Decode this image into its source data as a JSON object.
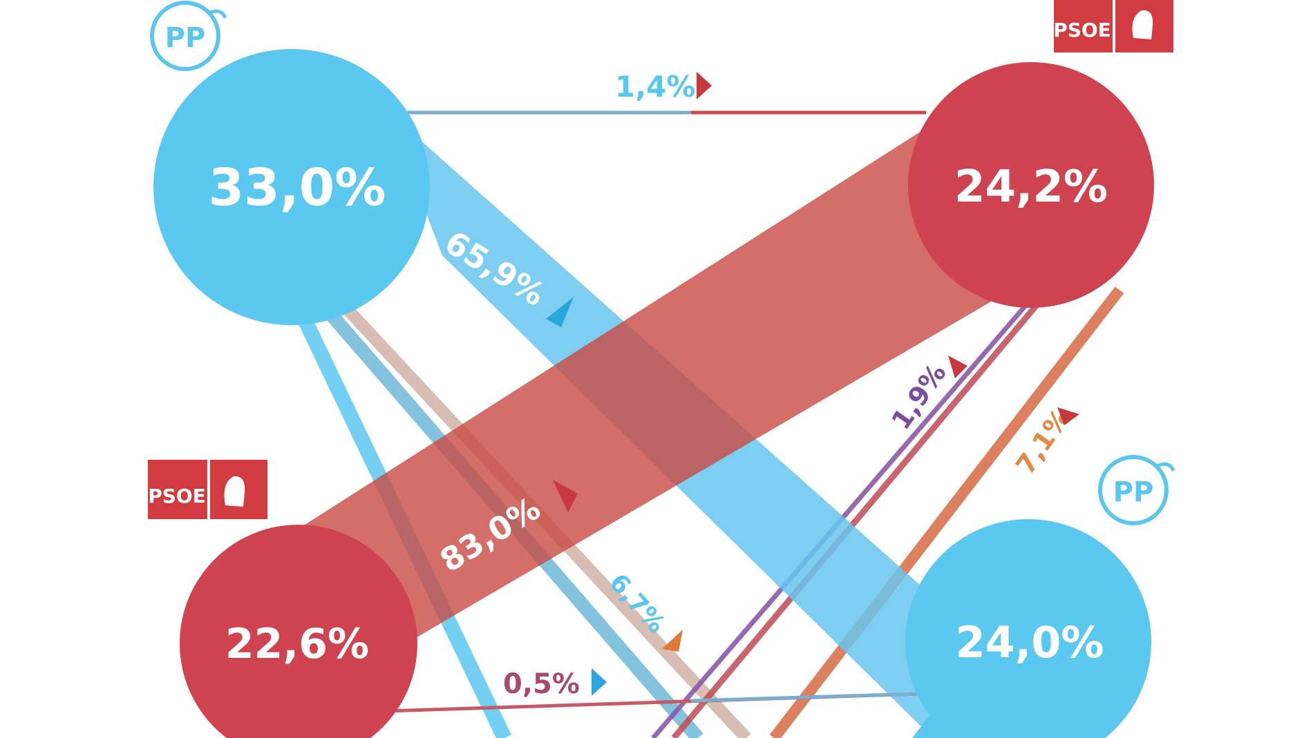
{
  "logos": {
    "pp_top_left": {
      "text": "PP",
      "color": "#5bc6ee"
    },
    "psoe_top_right": {
      "text": "PSOE",
      "color": "#d23b3f"
    },
    "psoe_left": {
      "text": "PSOE",
      "color": "#d23b3f"
    },
    "pp_right": {
      "text": "PP",
      "color": "#5bc6ee"
    }
  },
  "nodes": {
    "pp_top": {
      "label": "33,0%",
      "party": "PP",
      "color": "#5bc8f0"
    },
    "psoe_top": {
      "label": "24,2%",
      "party": "PSOE",
      "color": "#cf4350"
    },
    "psoe_bottom": {
      "label": "22,6%",
      "party": "PSOE",
      "color": "#cf4350"
    },
    "pp_bottom": {
      "label": "24,0%",
      "party": "PP",
      "color": "#5bc8f0"
    }
  },
  "flows": {
    "pp_to_psoe": {
      "label": "1,4%",
      "label_color": "#5bc6ee",
      "arrow_color": "#c8383f"
    },
    "pp_to_pp": {
      "label": "65,9%",
      "label_color": "#ffffff",
      "arrow_color": "#2aa6dc"
    },
    "psoe_to_psoe": {
      "label": "83,0%",
      "label_color": "#ffffff",
      "arrow_color": "#c8383f"
    },
    "purple_flow": {
      "label": "1,9%",
      "label_color": "#7a4e9e",
      "arrow_color": "#c8383f"
    },
    "orange_flow": {
      "label": "7,1%",
      "label_color": "#e08a4a",
      "arrow_color": "#c8383f"
    },
    "blue_small": {
      "label": "6,7%",
      "label_color": "#5bc6ee",
      "arrow_color": "#e0783a"
    },
    "psoe_to_pp": {
      "label": "0,5%",
      "label_color": "#a84a6a",
      "arrow_color": "#2aa6dc"
    }
  }
}
